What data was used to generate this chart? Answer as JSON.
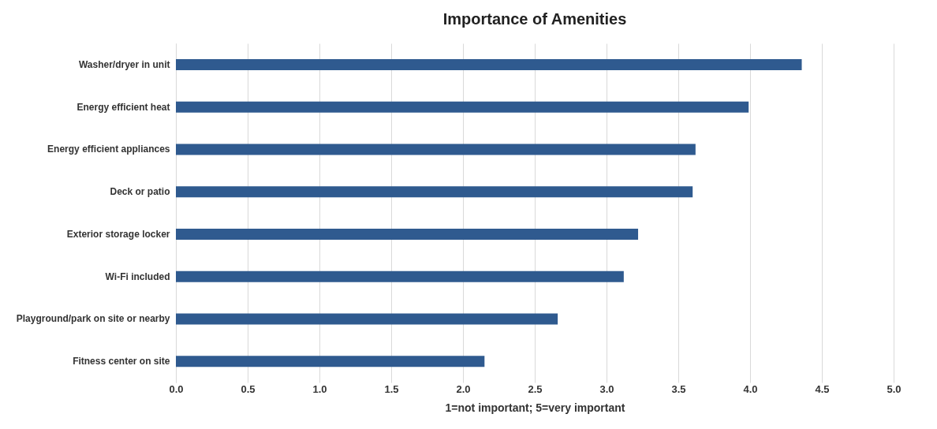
{
  "chart_data": {
    "type": "bar",
    "orientation": "horizontal",
    "title": "Importance of Amenities",
    "xlabel": "1=not important; 5=very important",
    "categories": [
      "Washer/dryer in unit",
      "Energy efficient heat",
      "Energy efficient appliances",
      "Deck or patio",
      "Exterior storage locker",
      "Wi-Fi included",
      "Playground/park on site or nearby",
      "Fitness center on site"
    ],
    "values": [
      4.36,
      3.99,
      3.62,
      3.6,
      3.22,
      3.12,
      2.66,
      2.15
    ],
    "color": "#2f5a8f",
    "xlim": [
      0,
      5
    ],
    "xticks": [
      {
        "value": 0,
        "label": "0.0"
      },
      {
        "value": 0.5,
        "label": "0.5"
      },
      {
        "value": 1,
        "label": "1.0"
      },
      {
        "value": 1.5,
        "label": "1.5"
      },
      {
        "value": 2,
        "label": "2.0"
      },
      {
        "value": 2.5,
        "label": "2.5"
      },
      {
        "value": 3,
        "label": "3.0"
      },
      {
        "value": 3.5,
        "label": "3.5"
      },
      {
        "value": 4,
        "label": "4.0"
      },
      {
        "value": 4.5,
        "label": "4.5"
      },
      {
        "value": 5,
        "label": "5.0"
      }
    ],
    "grid": "x"
  }
}
